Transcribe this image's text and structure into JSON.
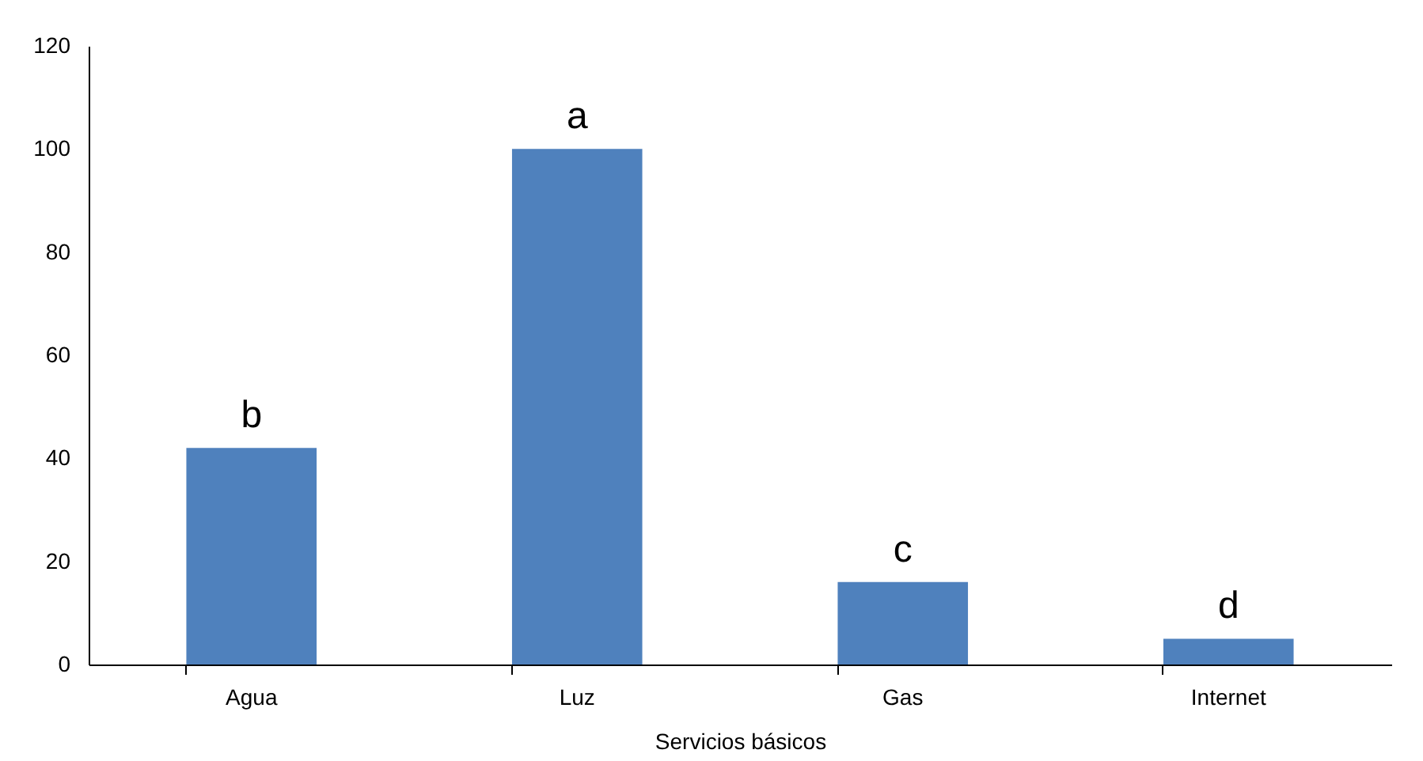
{
  "chart_data": {
    "type": "bar",
    "xlabel": "Servicios básicos",
    "categories": [
      "Agua",
      "Luz",
      "Gas",
      "Internet"
    ],
    "values": [
      42,
      100,
      16,
      5
    ],
    "color": "#4f81bd",
    "ylim": [
      0,
      120
    ],
    "yticks": [
      0,
      20,
      40,
      60,
      80,
      100,
      120
    ],
    "grid": false,
    "annotations": [
      {
        "text": "b",
        "x": "Agua",
        "y": 42
      },
      {
        "text": "a",
        "x": "Luz",
        "y": 100
      },
      {
        "text": "c",
        "x": "Gas",
        "y": 16
      },
      {
        "text": "d",
        "x": "Internet",
        "y": 5
      }
    ]
  }
}
